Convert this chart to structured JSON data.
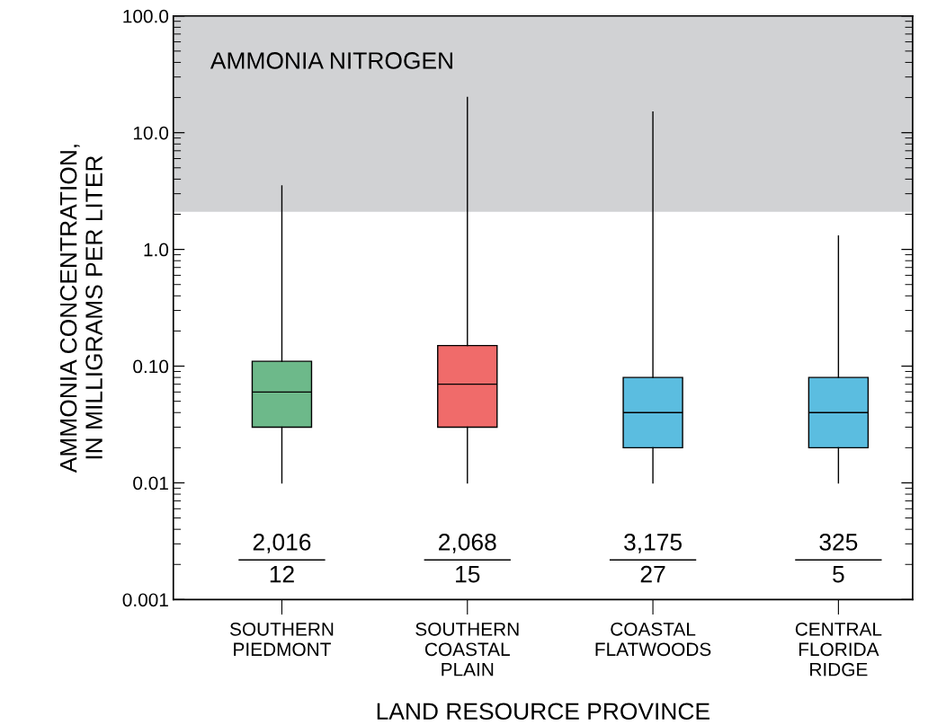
{
  "chart_data": {
    "type": "box",
    "categories": [
      "SOUTHERN\nPIEDMONT",
      "SOUTHERN\nCOASTAL\nPLAIN",
      "COASTAL\nFLATWOODS",
      "CENTRAL\nFLORIDA\nRIDGE"
    ],
    "boxes": [
      {
        "low": 0.01,
        "q1": 0.03,
        "median": 0.06,
        "q3": 0.11,
        "high": 3.5
      },
      {
        "low": 0.01,
        "q1": 0.03,
        "median": 0.07,
        "q3": 0.15,
        "high": 20
      },
      {
        "low": 0.01,
        "q1": 0.02,
        "median": 0.04,
        "q3": 0.08,
        "high": 15
      },
      {
        "low": 0.01,
        "q1": 0.02,
        "median": 0.04,
        "q3": 0.08,
        "high": 1.3
      }
    ],
    "colors": [
      "#6db98a",
      "#f06b6a",
      "#5bbde0",
      "#5bbde0"
    ],
    "xlabel": "LAND RESOURCE PROVINCE",
    "ylabel": "AMMONIA CONCENTRATION,\nIN MILLIGRAMS PER LITER",
    "log": "y",
    "ylim": [
      0.001,
      100
    ],
    "yticks": [
      {
        "value": 0.001,
        "label": "0.001"
      },
      {
        "value": 0.002,
        "label": null
      },
      {
        "value": 0.003,
        "label": null
      },
      {
        "value": 0.004,
        "label": null
      },
      {
        "value": 0.005,
        "label": null
      },
      {
        "value": 0.006,
        "label": null
      },
      {
        "value": 0.007,
        "label": null
      },
      {
        "value": 0.008,
        "label": null
      },
      {
        "value": 0.009,
        "label": null
      },
      {
        "value": 0.01,
        "label": "0.01"
      },
      {
        "value": 0.02,
        "label": null
      },
      {
        "value": 0.03,
        "label": null
      },
      {
        "value": 0.04,
        "label": null
      },
      {
        "value": 0.05,
        "label": null
      },
      {
        "value": 0.06,
        "label": null
      },
      {
        "value": 0.07,
        "label": null
      },
      {
        "value": 0.08,
        "label": null
      },
      {
        "value": 0.09,
        "label": null
      },
      {
        "value": 0.1,
        "label": "0.10"
      },
      {
        "value": 0.2,
        "label": null
      },
      {
        "value": 0.3,
        "label": null
      },
      {
        "value": 0.4,
        "label": null
      },
      {
        "value": 0.5,
        "label": null
      },
      {
        "value": 0.6,
        "label": null
      },
      {
        "value": 0.7,
        "label": null
      },
      {
        "value": 0.8,
        "label": null
      },
      {
        "value": 0.9,
        "label": null
      },
      {
        "value": 1,
        "label": "1.0"
      },
      {
        "value": 2,
        "label": null
      },
      {
        "value": 3,
        "label": null
      },
      {
        "value": 4,
        "label": null
      },
      {
        "value": 5,
        "label": null
      },
      {
        "value": 6,
        "label": null
      },
      {
        "value": 7,
        "label": null
      },
      {
        "value": 8,
        "label": null
      },
      {
        "value": 9,
        "label": null
      },
      {
        "value": 10,
        "label": "10.0"
      },
      {
        "value": 20,
        "label": null
      },
      {
        "value": 30,
        "label": null
      },
      {
        "value": 40,
        "label": null
      },
      {
        "value": 50,
        "label": null
      },
      {
        "value": 60,
        "label": null
      },
      {
        "value": 70,
        "label": null
      },
      {
        "value": 80,
        "label": null
      },
      {
        "value": 90,
        "label": null
      },
      {
        "value": 100,
        "label": "100.0"
      }
    ],
    "bands": [
      {
        "axis": "y",
        "from": 2.1,
        "to": 100,
        "label": "AMMONIA NITROGEN",
        "color": "#d1d2d4"
      }
    ],
    "annotations": [
      "2,016",
      "12",
      "2,068",
      "15",
      "3,175",
      "27",
      "325",
      "5"
    ],
    "grid": false
  }
}
